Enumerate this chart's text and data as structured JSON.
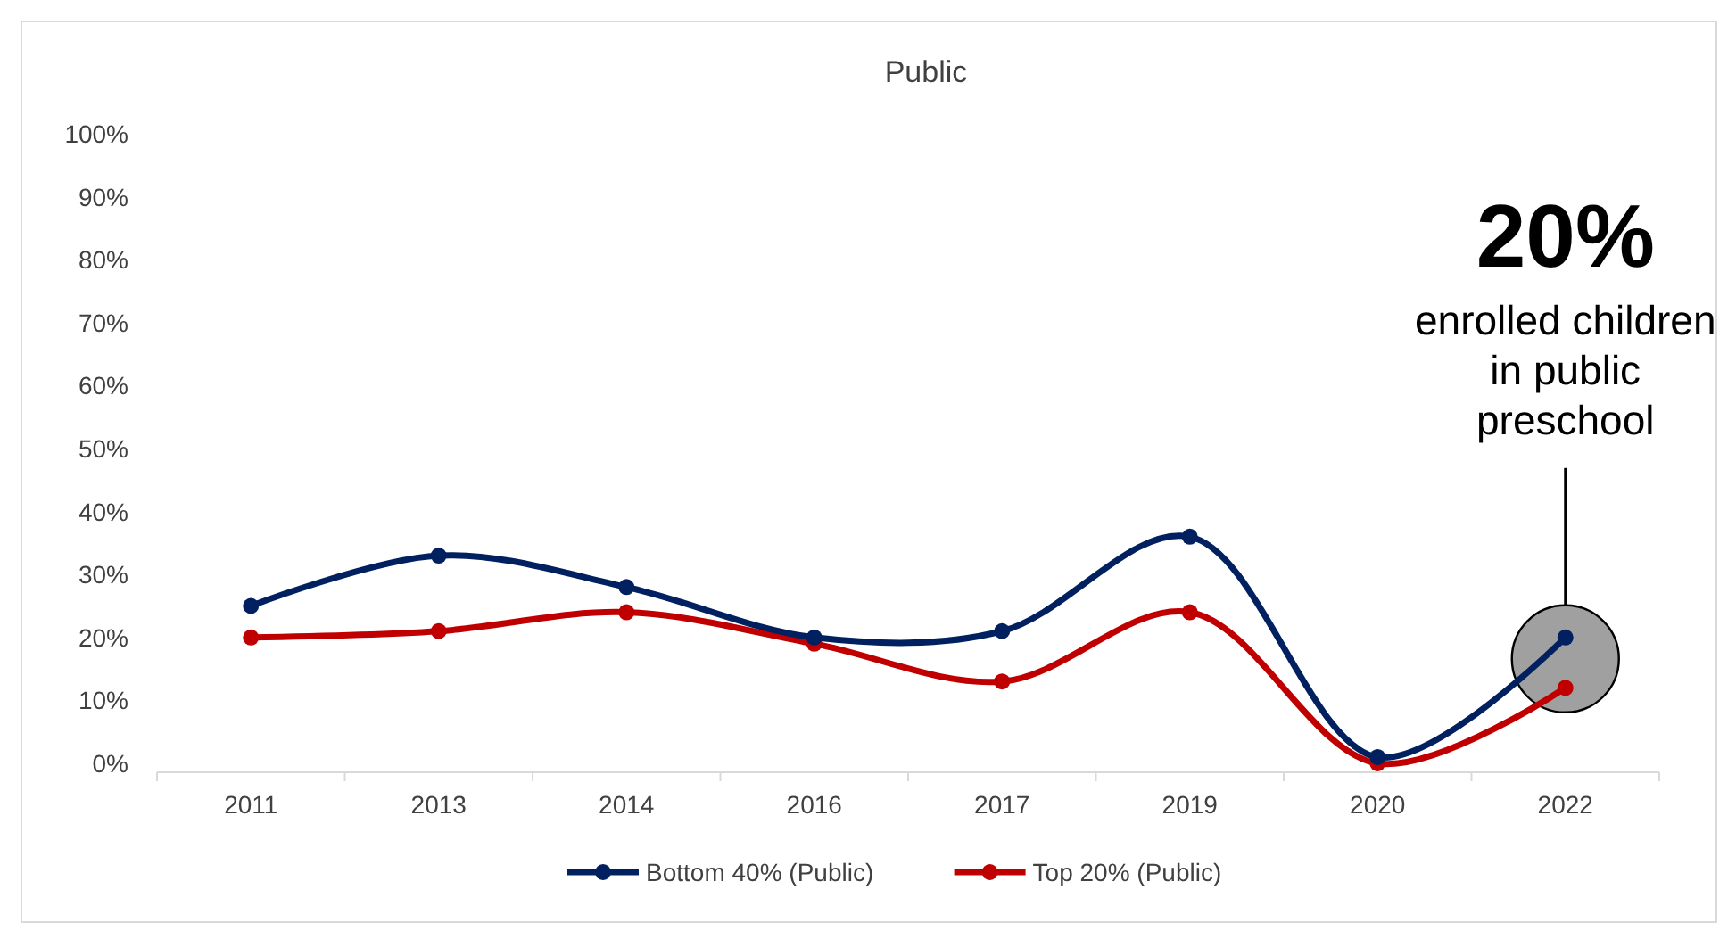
{
  "chart_data": {
    "type": "line",
    "title": "Public",
    "categories": [
      "2011",
      "2013",
      "2014",
      "2016",
      "2017",
      "2019",
      "2020",
      "2022"
    ],
    "series": [
      {
        "name": "Bottom 40% (Public)",
        "color": "#002060",
        "values": [
          25,
          33,
          28,
          20,
          21,
          36,
          1,
          20
        ]
      },
      {
        "name": "Top 20% (Public)",
        "color": "#c00000",
        "values": [
          20,
          21,
          24,
          19,
          13,
          24,
          0,
          12
        ]
      }
    ],
    "ylim": [
      0,
      100
    ],
    "yticks": [
      {
        "value": 0,
        "label": "0%"
      },
      {
        "value": 10,
        "label": "10%"
      },
      {
        "value": 20,
        "label": "20%"
      },
      {
        "value": 30,
        "label": "30%"
      },
      {
        "value": 40,
        "label": "40%"
      },
      {
        "value": 50,
        "label": "50%"
      },
      {
        "value": 60,
        "label": "60%"
      },
      {
        "value": 70,
        "label": "70%"
      },
      {
        "value": 80,
        "label": "80%"
      },
      {
        "value": 90,
        "label": "90%"
      },
      {
        "value": 100,
        "label": "100%"
      }
    ],
    "grid": false,
    "legend": "bottom",
    "marker": "circle",
    "line_style": "solid",
    "annotations": [
      "20%",
      "enrolled children in public preschool"
    ]
  }
}
